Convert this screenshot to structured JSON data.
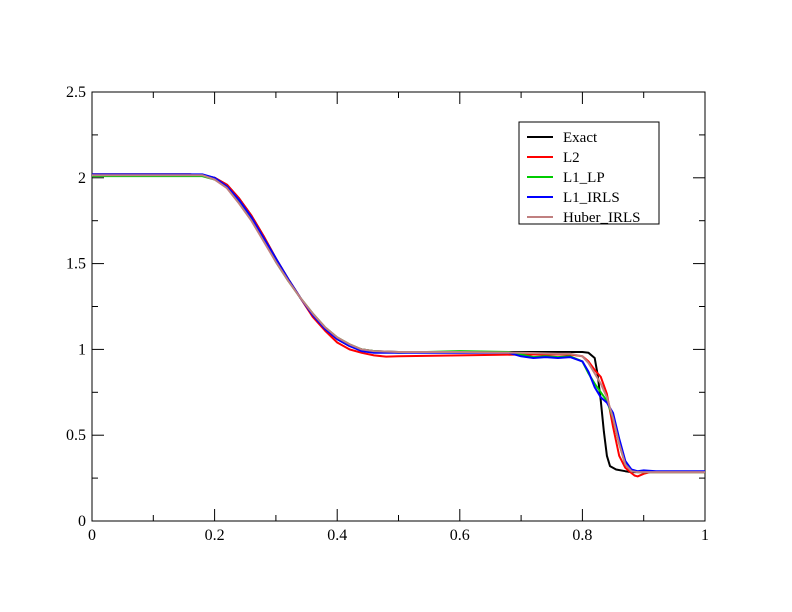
{
  "chart_data": {
    "type": "line",
    "title": "",
    "xlabel": "",
    "ylabel": "",
    "xlim": [
      0,
      1
    ],
    "ylim": [
      0,
      2.5
    ],
    "x_ticks": [
      "0",
      "0.2",
      "0.4",
      "0.6",
      "0.8",
      "1"
    ],
    "y_ticks": [
      "0",
      "0.5",
      "1",
      "1.5",
      "2",
      "2.5"
    ],
    "grid": false,
    "legend_position": "top-right",
    "series": [
      {
        "name": "Exact",
        "color": "#000000",
        "points": [
          [
            0,
            2.02
          ],
          [
            0.16,
            2.02
          ],
          [
            0.18,
            2.015
          ],
          [
            0.2,
            2.0
          ],
          [
            0.22,
            1.96
          ],
          [
            0.24,
            1.88
          ],
          [
            0.26,
            1.78
          ],
          [
            0.28,
            1.66
          ],
          [
            0.3,
            1.53
          ],
          [
            0.32,
            1.41
          ],
          [
            0.34,
            1.3
          ],
          [
            0.36,
            1.2
          ],
          [
            0.38,
            1.12
          ],
          [
            0.4,
            1.06
          ],
          [
            0.42,
            1.02
          ],
          [
            0.44,
            1.0
          ],
          [
            0.46,
            0.99
          ],
          [
            0.5,
            0.985
          ],
          [
            0.6,
            0.985
          ],
          [
            0.7,
            0.985
          ],
          [
            0.8,
            0.985
          ],
          [
            0.81,
            0.98
          ],
          [
            0.82,
            0.95
          ],
          [
            0.825,
            0.85
          ],
          [
            0.83,
            0.7
          ],
          [
            0.835,
            0.52
          ],
          [
            0.84,
            0.38
          ],
          [
            0.845,
            0.32
          ],
          [
            0.855,
            0.3
          ],
          [
            0.87,
            0.29
          ],
          [
            0.88,
            0.285
          ],
          [
            1.0,
            0.285
          ]
        ]
      },
      {
        "name": "L2",
        "color": "#ff0000",
        "points": [
          [
            0,
            2.02
          ],
          [
            0.16,
            2.02
          ],
          [
            0.18,
            2.015
          ],
          [
            0.2,
            2.0
          ],
          [
            0.22,
            1.96
          ],
          [
            0.24,
            1.88
          ],
          [
            0.26,
            1.78
          ],
          [
            0.28,
            1.66
          ],
          [
            0.3,
            1.53
          ],
          [
            0.32,
            1.41
          ],
          [
            0.34,
            1.3
          ],
          [
            0.36,
            1.19
          ],
          [
            0.38,
            1.11
          ],
          [
            0.4,
            1.04
          ],
          [
            0.42,
            1.0
          ],
          [
            0.44,
            0.98
          ],
          [
            0.46,
            0.965
          ],
          [
            0.48,
            0.958
          ],
          [
            0.5,
            0.96
          ],
          [
            0.6,
            0.965
          ],
          [
            0.7,
            0.97
          ],
          [
            0.78,
            0.97
          ],
          [
            0.8,
            0.96
          ],
          [
            0.81,
            0.93
          ],
          [
            0.82,
            0.88
          ],
          [
            0.83,
            0.84
          ],
          [
            0.84,
            0.74
          ],
          [
            0.85,
            0.55
          ],
          [
            0.86,
            0.38
          ],
          [
            0.87,
            0.31
          ],
          [
            0.88,
            0.28
          ],
          [
            0.885,
            0.265
          ],
          [
            0.89,
            0.26
          ],
          [
            0.9,
            0.275
          ],
          [
            0.91,
            0.285
          ],
          [
            1.0,
            0.285
          ]
        ]
      },
      {
        "name": "L1_LP",
        "color": "#00cc00",
        "points": [
          [
            0,
            2.01
          ],
          [
            0.18,
            2.01
          ],
          [
            0.2,
            1.99
          ],
          [
            0.22,
            1.95
          ],
          [
            0.24,
            1.86
          ],
          [
            0.26,
            1.76
          ],
          [
            0.28,
            1.64
          ],
          [
            0.3,
            1.51
          ],
          [
            0.32,
            1.4
          ],
          [
            0.34,
            1.3
          ],
          [
            0.36,
            1.21
          ],
          [
            0.38,
            1.13
          ],
          [
            0.4,
            1.07
          ],
          [
            0.42,
            1.03
          ],
          [
            0.44,
            1.0
          ],
          [
            0.46,
            0.99
          ],
          [
            0.5,
            0.98
          ],
          [
            0.6,
            0.99
          ],
          [
            0.68,
            0.985
          ],
          [
            0.7,
            0.97
          ],
          [
            0.72,
            0.955
          ],
          [
            0.74,
            0.96
          ],
          [
            0.76,
            0.955
          ],
          [
            0.78,
            0.96
          ],
          [
            0.8,
            0.93
          ],
          [
            0.81,
            0.86
          ],
          [
            0.82,
            0.8
          ],
          [
            0.83,
            0.75
          ],
          [
            0.84,
            0.7
          ],
          [
            0.85,
            0.6
          ],
          [
            0.86,
            0.45
          ],
          [
            0.87,
            0.33
          ],
          [
            0.88,
            0.295
          ],
          [
            0.89,
            0.285
          ],
          [
            1.0,
            0.285
          ]
        ]
      },
      {
        "name": "L1_IRLS",
        "color": "#0000ff",
        "points": [
          [
            0,
            2.02
          ],
          [
            0.18,
            2.02
          ],
          [
            0.2,
            2.0
          ],
          [
            0.22,
            1.95
          ],
          [
            0.24,
            1.87
          ],
          [
            0.26,
            1.77
          ],
          [
            0.28,
            1.65
          ],
          [
            0.3,
            1.53
          ],
          [
            0.32,
            1.41
          ],
          [
            0.34,
            1.3
          ],
          [
            0.36,
            1.2
          ],
          [
            0.38,
            1.12
          ],
          [
            0.4,
            1.06
          ],
          [
            0.42,
            1.02
          ],
          [
            0.44,
            0.99
          ],
          [
            0.46,
            0.98
          ],
          [
            0.5,
            0.98
          ],
          [
            0.6,
            0.98
          ],
          [
            0.68,
            0.98
          ],
          [
            0.7,
            0.96
          ],
          [
            0.72,
            0.95
          ],
          [
            0.74,
            0.955
          ],
          [
            0.76,
            0.95
          ],
          [
            0.78,
            0.955
          ],
          [
            0.8,
            0.93
          ],
          [
            0.81,
            0.87
          ],
          [
            0.82,
            0.78
          ],
          [
            0.83,
            0.72
          ],
          [
            0.84,
            0.69
          ],
          [
            0.85,
            0.63
          ],
          [
            0.86,
            0.48
          ],
          [
            0.87,
            0.35
          ],
          [
            0.88,
            0.3
          ],
          [
            0.89,
            0.29
          ],
          [
            0.9,
            0.295
          ],
          [
            0.92,
            0.29
          ],
          [
            1.0,
            0.29
          ]
        ]
      },
      {
        "name": "Huber_IRLS",
        "color": "#c08080",
        "points": [
          [
            0,
            2.015
          ],
          [
            0.18,
            2.015
          ],
          [
            0.2,
            1.99
          ],
          [
            0.22,
            1.94
          ],
          [
            0.24,
            1.85
          ],
          [
            0.26,
            1.75
          ],
          [
            0.28,
            1.63
          ],
          [
            0.3,
            1.51
          ],
          [
            0.32,
            1.4
          ],
          [
            0.34,
            1.3
          ],
          [
            0.36,
            1.21
          ],
          [
            0.38,
            1.13
          ],
          [
            0.4,
            1.07
          ],
          [
            0.42,
            1.03
          ],
          [
            0.44,
            1.0
          ],
          [
            0.46,
            0.99
          ],
          [
            0.5,
            0.985
          ],
          [
            0.6,
            0.985
          ],
          [
            0.7,
            0.98
          ],
          [
            0.76,
            0.975
          ],
          [
            0.78,
            0.975
          ],
          [
            0.8,
            0.96
          ],
          [
            0.81,
            0.92
          ],
          [
            0.82,
            0.86
          ],
          [
            0.83,
            0.8
          ],
          [
            0.84,
            0.72
          ],
          [
            0.85,
            0.6
          ],
          [
            0.86,
            0.45
          ],
          [
            0.87,
            0.33
          ],
          [
            0.88,
            0.29
          ],
          [
            0.89,
            0.285
          ],
          [
            1.0,
            0.285
          ]
        ]
      }
    ]
  }
}
